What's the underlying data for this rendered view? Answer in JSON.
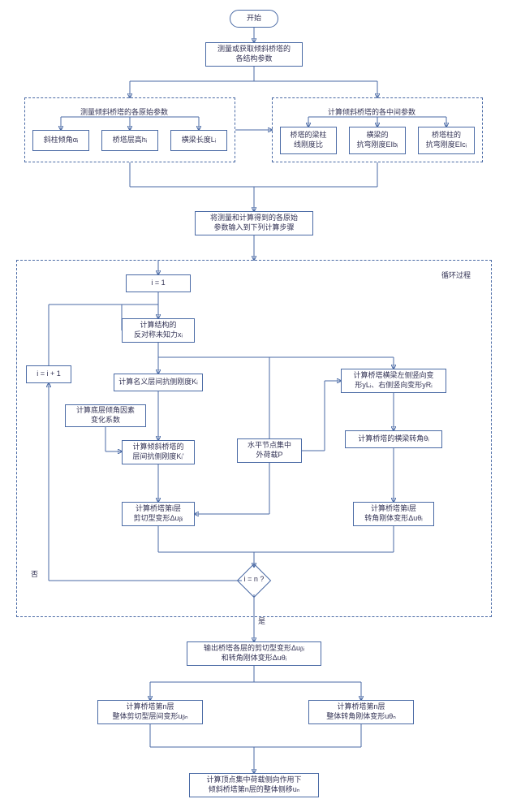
{
  "flow": {
    "start": "开始",
    "measure": "测量或获取倾斜桥塔的\n各结构参数",
    "group_raw_title": "测量倾斜桥塔的各原始参数",
    "raw_a": "斜柱倾角αᵢ",
    "raw_b": "桥塔层高hᵢ",
    "raw_c": "横梁长度Lᵢ",
    "group_mid_title": "计算倾斜桥塔的各中间参数",
    "mid_a": "桥塔的梁柱\n线刚度比",
    "mid_b": "横梁的\n抗弯刚度EIbᵢ",
    "mid_c": "桥塔柱的\n抗弯刚度EIcᵢ",
    "input_step": "将测量和计算得到的各原始\n参数输入到下列计算步骤",
    "loop_title": "循环过程",
    "i1": "i = 1",
    "calc_antisym": "计算结构的\n反对称未知力xᵢ",
    "i_inc": "i = i + 1",
    "calc_nominal_k": "计算名义层间抗侧刚度Kᵢ",
    "calc_bottom_coef": "计算底层倾角因素\n变化系数",
    "calc_inclined_k": "计算倾斜桥塔的\n层间抗侧刚度Kᵢ'",
    "horiz_load": "水平节点集中\n外荷载P",
    "calc_beam_deform": "计算桥塔横梁左侧竖向变\n形yLᵢ、右侧竖向变形yRᵢ",
    "calc_beam_angle": "计算桥塔的横梁转角θᵢ",
    "calc_shear_def": "计算桥塔第i层\n剪切型变形Δuᵦᵢ",
    "calc_rot_def": "计算桥塔第i层\n转角刚体变形Δuθᵢ",
    "decision": "i = n ?",
    "no": "否",
    "yes": "是",
    "output_layers": "输出桥塔各层的剪切型变形Δuᵦᵢ\n和转角刚体变形Δuθᵢ",
    "calc_n_shear": "计算桥塔第n层\n整体剪切型层间变形uᵦₙ",
    "calc_n_rot": "计算桥塔第n层\n整体转角刚体变形uθₙ",
    "final": "计算顶点集中荷载侧向作用下\n倾斜桥塔第n层的整体侧移uₙ"
  },
  "style": {
    "border_color": "#4a6aa5",
    "text_color": "#333355",
    "font_size_small": 9
  }
}
